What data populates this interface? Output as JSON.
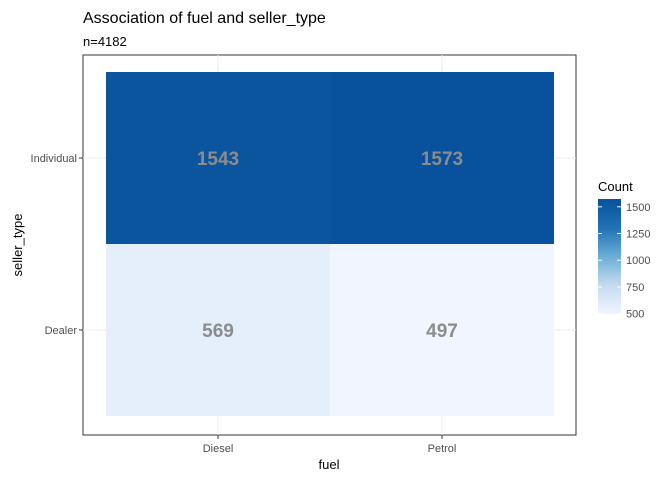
{
  "chart_data": {
    "type": "heatmap",
    "title": "Association of fuel and seller_type",
    "subtitle": "n=4182",
    "xlabel": "fuel",
    "ylabel": "seller_type",
    "x_categories": [
      "Diesel",
      "Petrol"
    ],
    "y_categories": [
      "Dealer",
      "Individual"
    ],
    "cells": [
      {
        "x": "Diesel",
        "y": "Individual",
        "value": 1543
      },
      {
        "x": "Petrol",
        "y": "Individual",
        "value": 1573
      },
      {
        "x": "Diesel",
        "y": "Dealer",
        "value": 569
      },
      {
        "x": "Petrol",
        "y": "Dealer",
        "value": 497
      }
    ],
    "legend": {
      "title": "Count",
      "ticks": [
        500,
        750,
        1000,
        1250,
        1500
      ],
      "range": [
        497,
        1573
      ],
      "low_color": "#f0f5ff",
      "high_color": "#08519c",
      "placement": "right"
    },
    "grid": true
  }
}
